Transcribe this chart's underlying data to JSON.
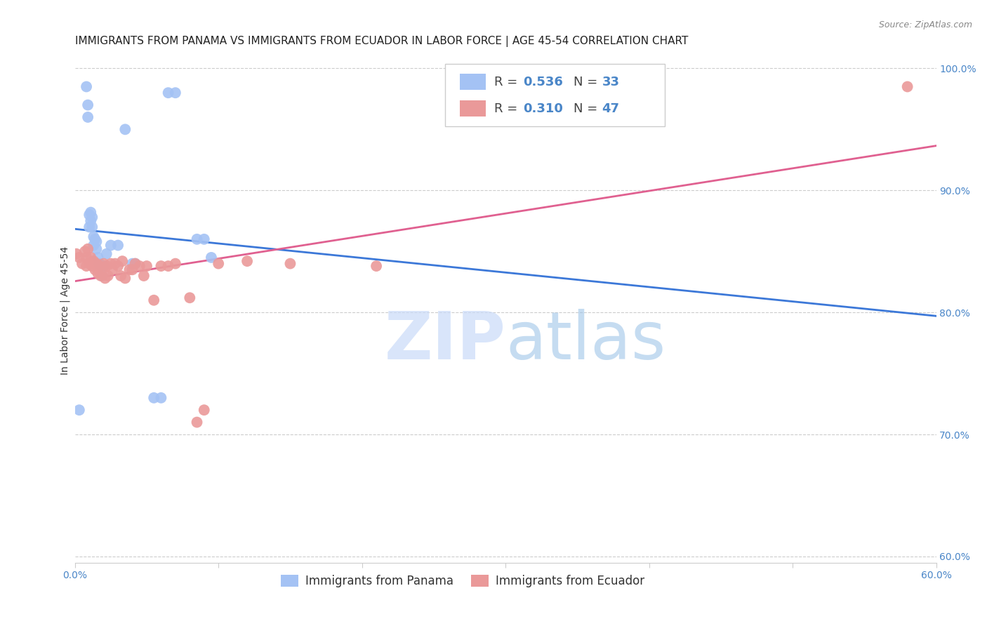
{
  "title": "IMMIGRANTS FROM PANAMA VS IMMIGRANTS FROM ECUADOR IN LABOR FORCE | AGE 45-54 CORRELATION CHART",
  "source": "Source: ZipAtlas.com",
  "ylabel": "In Labor Force | Age 45-54",
  "xlim": [
    0.0,
    0.6
  ],
  "ylim": [
    0.595,
    1.008
  ],
  "xticks": [
    0.0,
    0.1,
    0.2,
    0.3,
    0.4,
    0.5,
    0.6
  ],
  "xtick_labels": [
    "0.0%",
    "",
    "",
    "",
    "",
    "",
    "60.0%"
  ],
  "yticks_right": [
    0.6,
    0.7,
    0.8,
    0.9,
    1.0
  ],
  "ytick_labels_right": [
    "60.0%",
    "70.0%",
    "80.0%",
    "90.0%",
    "100.0%"
  ],
  "panama_color": "#a4c2f4",
  "ecuador_color": "#ea9999",
  "panama_line_color": "#3c78d8",
  "ecuador_line_color": "#e06090",
  "panama_x": [
    0.003,
    0.008,
    0.009,
    0.009,
    0.01,
    0.01,
    0.011,
    0.011,
    0.012,
    0.012,
    0.013,
    0.013,
    0.014,
    0.015,
    0.015,
    0.016,
    0.017,
    0.018,
    0.019,
    0.02,
    0.022,
    0.025,
    0.03,
    0.035,
    0.04,
    0.042,
    0.055,
    0.06,
    0.065,
    0.07,
    0.085,
    0.09,
    0.095
  ],
  "panama_y": [
    0.72,
    0.985,
    0.97,
    0.96,
    0.87,
    0.88,
    0.875,
    0.882,
    0.87,
    0.878,
    0.855,
    0.862,
    0.86,
    0.852,
    0.858,
    0.845,
    0.84,
    0.838,
    0.83,
    0.838,
    0.848,
    0.855,
    0.855,
    0.95,
    0.84,
    0.84,
    0.73,
    0.73,
    0.98,
    0.98,
    0.86,
    0.86,
    0.845
  ],
  "ecuador_x": [
    0.001,
    0.003,
    0.005,
    0.007,
    0.008,
    0.008,
    0.009,
    0.01,
    0.011,
    0.012,
    0.013,
    0.013,
    0.014,
    0.015,
    0.016,
    0.017,
    0.018,
    0.019,
    0.02,
    0.021,
    0.022,
    0.023,
    0.025,
    0.026,
    0.028,
    0.03,
    0.032,
    0.033,
    0.035,
    0.038,
    0.04,
    0.042,
    0.045,
    0.048,
    0.05,
    0.055,
    0.06,
    0.065,
    0.07,
    0.08,
    0.085,
    0.09,
    0.1,
    0.12,
    0.15,
    0.21,
    0.58
  ],
  "ecuador_y": [
    0.848,
    0.845,
    0.84,
    0.85,
    0.838,
    0.845,
    0.852,
    0.84,
    0.845,
    0.838,
    0.84,
    0.842,
    0.835,
    0.84,
    0.832,
    0.838,
    0.83,
    0.835,
    0.84,
    0.828,
    0.838,
    0.83,
    0.84,
    0.835,
    0.84,
    0.838,
    0.83,
    0.842,
    0.828,
    0.835,
    0.835,
    0.84,
    0.838,
    0.83,
    0.838,
    0.81,
    0.838,
    0.838,
    0.84,
    0.812,
    0.71,
    0.72,
    0.84,
    0.842,
    0.84,
    0.838,
    0.985
  ],
  "watermark_zip": "ZIP",
  "watermark_atlas": "atlas",
  "background_color": "#ffffff",
  "grid_color": "#cccccc",
  "title_fontsize": 11,
  "tick_fontsize": 10,
  "source_fontsize": 9
}
